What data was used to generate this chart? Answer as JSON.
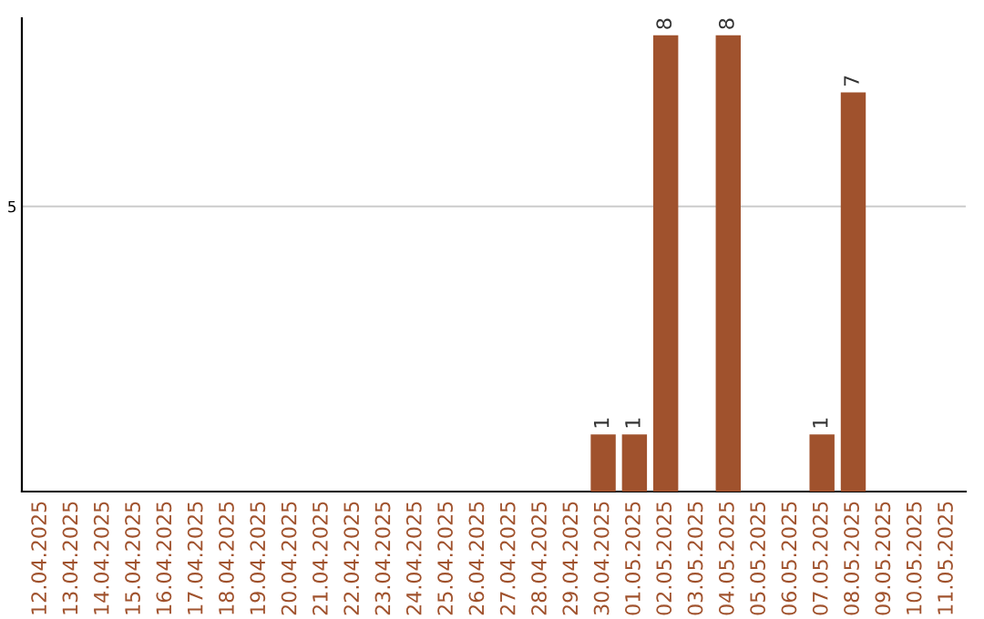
{
  "chart_data": {
    "type": "bar",
    "categories": [
      "12.04.2025",
      "13.04.2025",
      "14.04.2025",
      "15.04.2025",
      "16.04.2025",
      "17.04.2025",
      "18.04.2025",
      "19.04.2025",
      "20.04.2025",
      "21.04.2025",
      "22.04.2025",
      "23.04.2025",
      "24.04.2025",
      "25.04.2025",
      "26.04.2025",
      "27.04.2025",
      "28.04.2025",
      "29.04.2025",
      "30.04.2025",
      "01.05.2025",
      "02.05.2025",
      "03.05.2025",
      "04.05.2025",
      "05.05.2025",
      "06.05.2025",
      "07.05.2025",
      "08.05.2025",
      "09.05.2025",
      "10.05.2025",
      "11.05.2025"
    ],
    "values": [
      null,
      null,
      null,
      null,
      null,
      null,
      null,
      null,
      null,
      null,
      null,
      null,
      null,
      null,
      null,
      null,
      null,
      null,
      1,
      1,
      8,
      null,
      8,
      null,
      null,
      1,
      7,
      null,
      null,
      null
    ],
    "data_labels": true,
    "color": "#a0522d",
    "ylim": [
      0,
      8.3
    ],
    "yticks": [
      5
    ],
    "grid": "y"
  }
}
